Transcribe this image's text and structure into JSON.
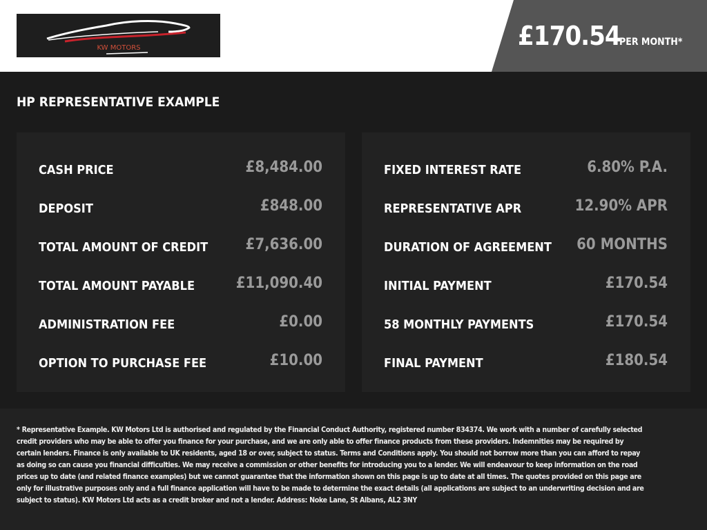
{
  "logo": {
    "text": "KW MOTORS",
    "accent": "#c8232c"
  },
  "header": {
    "price": "£170.54",
    "per_month": "PER MONTH*"
  },
  "section_title": "HP REPRESENTATIVE EXAMPLE",
  "left_panel": [
    {
      "label": "CASH PRICE",
      "value": "£8,484.00"
    },
    {
      "label": "DEPOSIT",
      "value": "£848.00"
    },
    {
      "label": "TOTAL AMOUNT OF CREDIT",
      "value": "£7,636.00"
    },
    {
      "label": "TOTAL AMOUNT PAYABLE",
      "value": "£11,090.40"
    },
    {
      "label": "ADMINISTRATION FEE",
      "value": "£0.00"
    },
    {
      "label": "OPTION TO PURCHASE FEE",
      "value": "£10.00"
    }
  ],
  "right_panel": [
    {
      "label": "FIXED INTEREST RATE",
      "value": "6.80% P.A."
    },
    {
      "label": "REPRESENTATIVE APR",
      "value": "12.90% APR"
    },
    {
      "label": "DURATION OF AGREEMENT",
      "value": "60 MONTHS"
    },
    {
      "label": "INITIAL PAYMENT",
      "value": "£170.54"
    },
    {
      "label": "58 MONTHLY PAYMENTS",
      "value": "£170.54"
    },
    {
      "label": "FINAL PAYMENT",
      "value": "£180.54"
    }
  ],
  "disclaimer": "* Representative Example. KW Motors Ltd is authorised and regulated by the Financial Conduct Authority, registered number 834374. We work with a number of carefully selected credit providers who may be able to offer you finance for your purchase, and we are only able to offer finance products from these providers. Indemnities may be required by certain lenders. Finance is only available to UK residents, aged 18 or over, subject to status. Terms and Conditions apply. You should not borrow more than you can afford to repay as doing so can cause you financial difficulties. We may receive a commission or other benefits for introducing you to a lender. We will endeavour to keep information on the road prices up to date (and related finance examples) but we cannot guarantee that the information shown on this page is up to date at all times. The quotes provided on this page are only for illustrative purposes only and a full finance application will have to be made to determine the exact details (all applications are subject to an underwriting decision and are subject to status). KW Motors Ltd acts as a credit broker and not a lender. Address: Noke Lane, St Albans, AL2 3NY"
}
